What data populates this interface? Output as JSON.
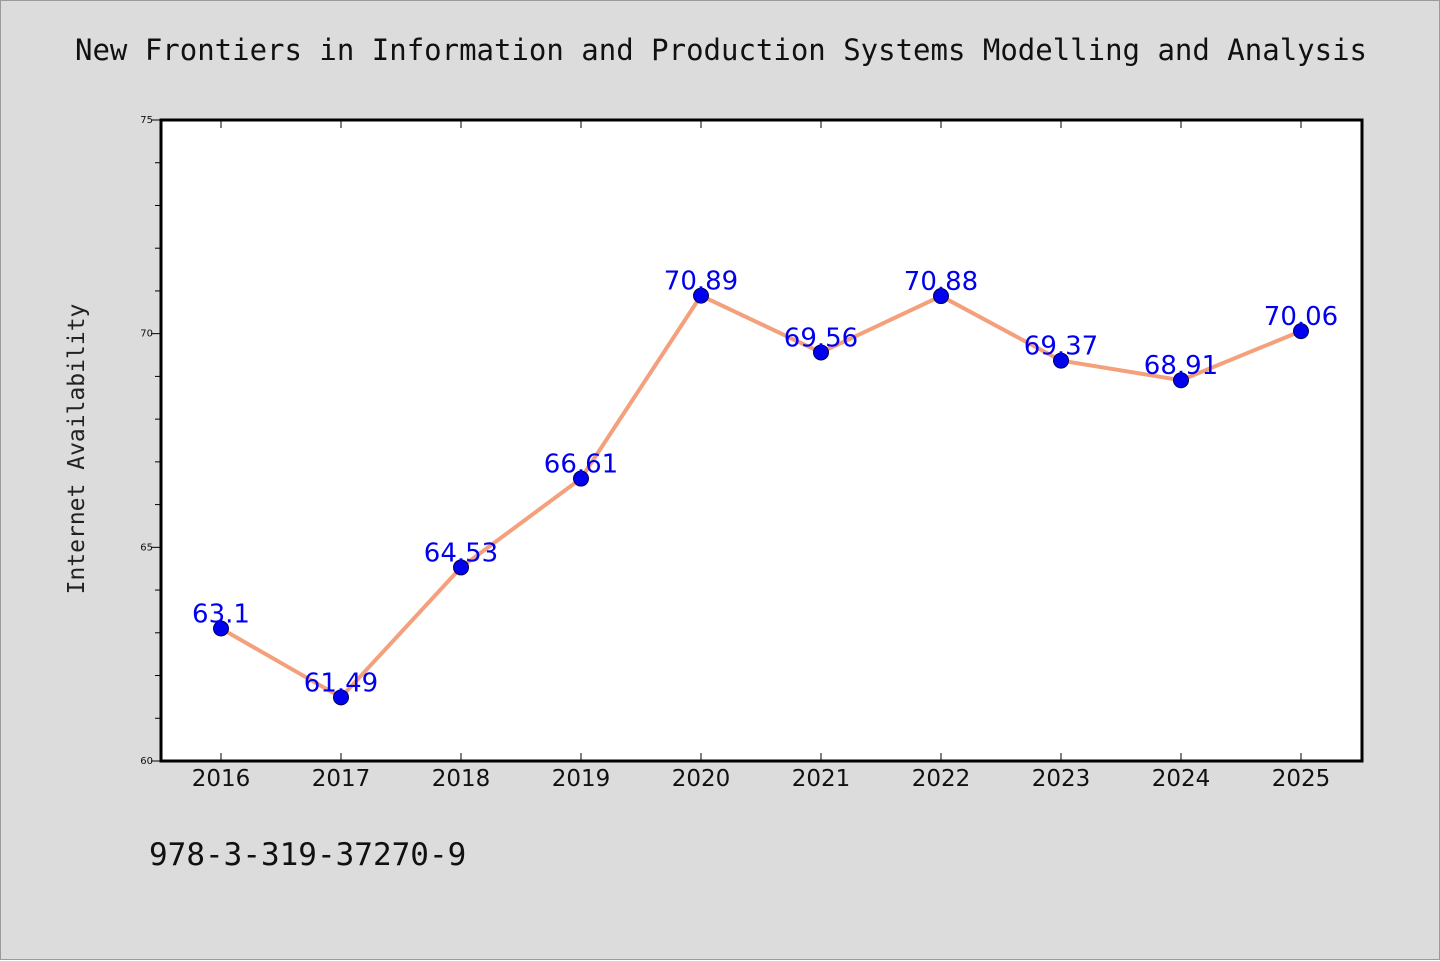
{
  "chart_data": {
    "type": "line",
    "title": "New Frontiers in Information and Production Systems Modelling and Analysis",
    "ylabel": "Internet Availability",
    "xlabel": "",
    "categories": [
      "2016",
      "2017",
      "2018",
      "2019",
      "2020",
      "2021",
      "2022",
      "2023",
      "2024",
      "2025"
    ],
    "values": [
      63.1,
      61.49,
      64.53,
      66.61,
      70.89,
      69.56,
      70.88,
      69.37,
      68.91,
      70.06
    ],
    "ylim": [
      60,
      75
    ],
    "yticks": [
      "60",
      "65",
      "70",
      "75"
    ],
    "grid": false,
    "line_color": "#f4a07c",
    "marker_color": "#0000ee",
    "label_color": "#0000ee"
  },
  "footer": {
    "isbn": "978-3-319-37270-9"
  }
}
